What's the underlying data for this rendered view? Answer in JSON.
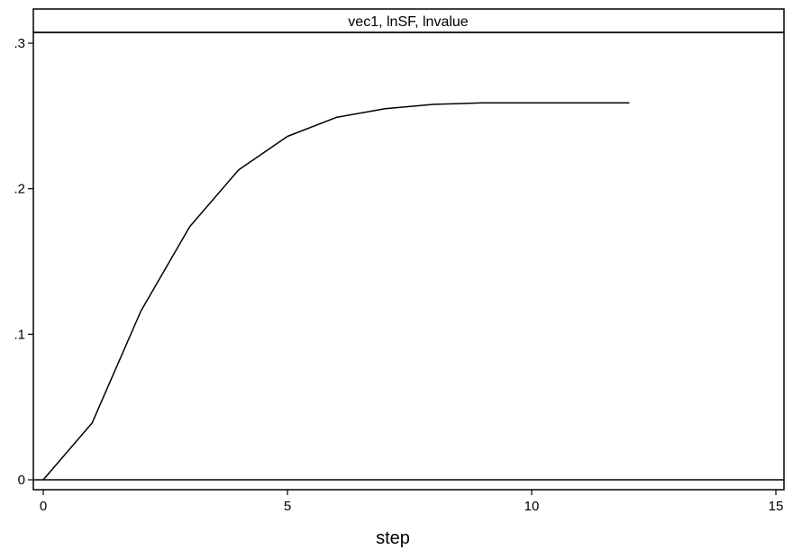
{
  "chart_data": {
    "type": "line",
    "panel_title": "vec1, lnSF, lnvalue",
    "xlabel": "step",
    "ylabel": "",
    "xlim": [
      0,
      15
    ],
    "ylim": [
      0,
      0.3
    ],
    "x_ticks": [
      {
        "value": 0,
        "label": "0"
      },
      {
        "value": 5,
        "label": "5"
      },
      {
        "value": 10,
        "label": "10"
      },
      {
        "value": 15,
        "label": "15"
      }
    ],
    "y_ticks": [
      {
        "value": 0,
        "label": "0"
      },
      {
        "value": 0.1,
        "label": ".1"
      },
      {
        "value": 0.2,
        "label": ".2"
      },
      {
        "value": 0.3,
        "label": ".3"
      }
    ],
    "grid": false,
    "legend": "none",
    "line_color": "#000000",
    "series": [
      {
        "x": [
          0,
          1,
          2,
          3,
          4,
          5,
          6,
          7,
          8,
          9,
          10,
          11,
          12
        ],
        "y": [
          0.0,
          0.039,
          0.116,
          0.174,
          0.213,
          0.236,
          0.249,
          0.255,
          0.258,
          0.259,
          0.259,
          0.259,
          0.259
        ]
      }
    ]
  }
}
